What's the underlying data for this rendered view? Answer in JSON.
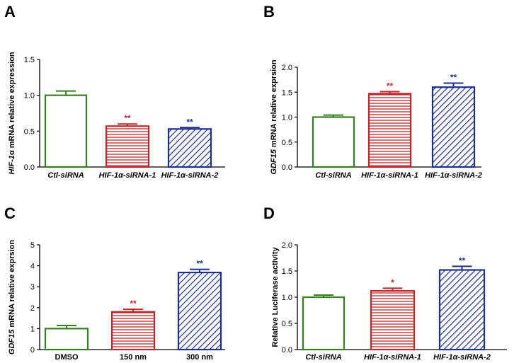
{
  "colors": {
    "green": "#3a7d1e",
    "red": "#c0272d",
    "blue": "#1f2f8c"
  },
  "chart_data": [
    {
      "panel": "A",
      "type": "bar",
      "ylabel_italic": "HIF-1",
      "ylabel_rest": "α mRNA relative expression",
      "ylim": [
        0,
        1.5
      ],
      "yticks": [
        "0.0",
        "0.5",
        "1.0",
        "1.5"
      ],
      "categories": [
        "Ctl-siRNA",
        "HIF-1α-siRNA-1",
        "HIF-1α-siRNA-2"
      ],
      "values": [
        1.0,
        0.57,
        0.53
      ],
      "errors": [
        0.06,
        0.03,
        0.02
      ],
      "significance": [
        "",
        "**",
        "**"
      ],
      "patterns": [
        "none",
        "hstripe",
        "diag"
      ]
    },
    {
      "panel": "B",
      "type": "bar",
      "ylabel_italic": "GDF15",
      "ylabel_rest": " mRNA relative exprsion",
      "ylim": [
        0,
        2.0
      ],
      "yticks": [
        "0.0",
        "0.5",
        "1.0",
        "1.5",
        "2.0"
      ],
      "categories": [
        "Ctl-siRNA",
        "HIF-1α-siRNA-1",
        "HIF-1α-siRNA-2"
      ],
      "values": [
        1.0,
        1.47,
        1.6
      ],
      "errors": [
        0.04,
        0.04,
        0.08
      ],
      "significance": [
        "",
        "**",
        "**"
      ],
      "patterns": [
        "none",
        "hstripe",
        "diag"
      ]
    },
    {
      "panel": "C",
      "type": "bar",
      "ylabel_italic": "GDF15",
      "ylabel_rest": " mRNA relative exprsion",
      "ylim": [
        0,
        5
      ],
      "yticks": [
        "0",
        "1",
        "2",
        "3",
        "4",
        "5"
      ],
      "categories": [
        "DMSO",
        "150 nm",
        "300 nm"
      ],
      "values": [
        1.0,
        1.8,
        3.68
      ],
      "errors": [
        0.15,
        0.12,
        0.15
      ],
      "significance": [
        "",
        "**",
        "**"
      ],
      "patterns": [
        "none",
        "hstripe",
        "diag"
      ]
    },
    {
      "panel": "D",
      "type": "bar",
      "ylabel_italic": "",
      "ylabel_rest": "Relative Luciferase activity",
      "ylim": [
        0,
        2.0
      ],
      "yticks": [
        "0.0",
        "0.5",
        "1.0",
        "1.5",
        "2.0"
      ],
      "categories": [
        "Ctl-siRNA",
        "HIF-1α-siRNA-1",
        "HIF-1α-siRNA-2"
      ],
      "values": [
        1.0,
        1.12,
        1.52
      ],
      "errors": [
        0.04,
        0.05,
        0.07
      ],
      "significance": [
        "",
        "*",
        "**"
      ],
      "patterns": [
        "none",
        "hstripe",
        "diag"
      ]
    }
  ]
}
